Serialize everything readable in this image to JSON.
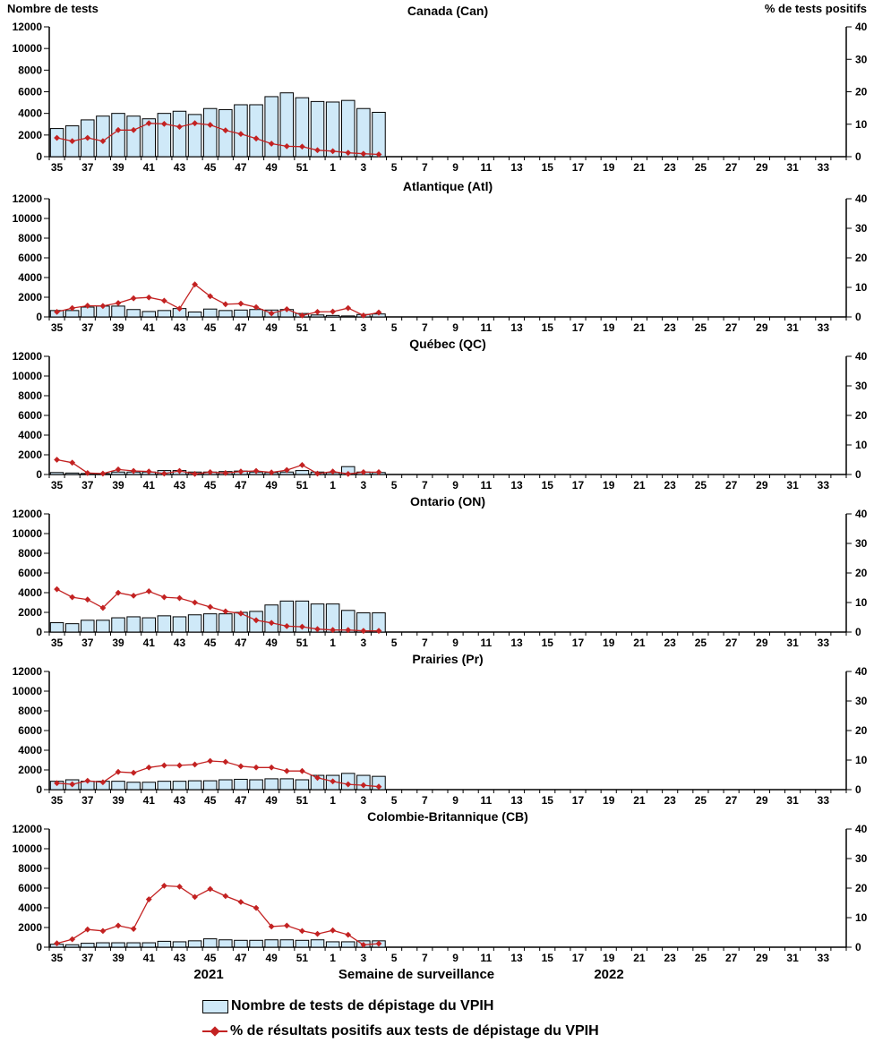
{
  "colors": {
    "bar_fill": "#CFE9F8",
    "bar_stroke": "#000000",
    "line": "#C32222",
    "axis": "#000000",
    "text": "#000000"
  },
  "axes": {
    "left_title": "Nombre de tests",
    "right_title": "% de tests positifs",
    "left_ticks": [
      "12000",
      "10000",
      "8000",
      "6000",
      "4000",
      "2000",
      "0"
    ],
    "right_ticks": [
      "40",
      "30",
      "20",
      "10",
      "0"
    ],
    "left_max": 12000,
    "right_max": 40,
    "weeks": [
      35,
      36,
      37,
      38,
      39,
      40,
      41,
      42,
      43,
      44,
      45,
      46,
      47,
      48,
      49,
      50,
      51,
      52,
      1,
      2,
      3,
      4,
      5,
      6,
      7,
      8,
      9,
      10,
      11,
      12,
      13,
      14,
      15,
      16,
      17,
      18,
      19,
      20,
      21,
      22,
      23,
      24,
      25,
      26,
      27,
      28,
      29,
      30,
      31,
      32,
      33,
      34
    ],
    "x_tick_labels": [
      "35",
      "37",
      "39",
      "41",
      "43",
      "45",
      "47",
      "49",
      "51",
      "1",
      "3",
      "5",
      "7",
      "9",
      "11",
      "13",
      "15",
      "17",
      "19",
      "21",
      "23",
      "25",
      "27",
      "29",
      "31",
      "33"
    ]
  },
  "footer": {
    "year_left": "2021",
    "axis_title": "Semaine de surveillance",
    "year_right": "2022"
  },
  "legend": {
    "bar_label": "Nombre de tests de dépistage du VPIH",
    "line_label": "% de résultats positifs aux tests de dépistage du VPIH"
  },
  "chart_data": [
    {
      "type": "bar",
      "id": "canada",
      "title": "Canada (Can)",
      "categories": [
        "35",
        "36",
        "37",
        "38",
        "39",
        "40",
        "41",
        "42",
        "43",
        "44",
        "45",
        "46",
        "47",
        "48",
        "49",
        "50",
        "51",
        "52",
        "1",
        "2",
        "3",
        "4"
      ],
      "ylim_left": [
        0,
        12000
      ],
      "ylim_right": [
        0,
        40
      ],
      "series": [
        {
          "name": "Nombre de tests de dépistage du VPIH",
          "axis": "left",
          "values": [
            2600,
            2850,
            3400,
            3750,
            4000,
            3750,
            3500,
            4000,
            4200,
            3900,
            4450,
            4350,
            4800,
            4800,
            5550,
            5900,
            5450,
            5100,
            5050,
            5200,
            4450,
            4100
          ]
        },
        {
          "name": "% de résultats positifs aux tests de dépistage du VPIH",
          "axis": "right",
          "values": [
            5.8,
            4.8,
            5.8,
            4.8,
            8.2,
            8.2,
            10.3,
            10.1,
            9.2,
            10.3,
            9.8,
            8.1,
            7.0,
            5.6,
            4.0,
            3.2,
            3.1,
            2.0,
            1.7,
            1.2,
            0.9,
            0.7
          ]
        }
      ]
    },
    {
      "type": "bar",
      "id": "atlantique",
      "title": "Atlantique (Atl)",
      "categories": [
        "35",
        "36",
        "37",
        "38",
        "39",
        "40",
        "41",
        "42",
        "43",
        "44",
        "45",
        "46",
        "47",
        "48",
        "49",
        "50",
        "51",
        "52",
        "1",
        "2",
        "3",
        "4"
      ],
      "ylim_left": [
        0,
        12000
      ],
      "ylim_right": [
        0,
        40
      ],
      "series": [
        {
          "name": "Nombre de tests de dépistage du VPIH",
          "axis": "left",
          "values": [
            650,
            650,
            1000,
            1100,
            1100,
            750,
            550,
            650,
            850,
            500,
            800,
            650,
            700,
            750,
            700,
            750,
            350,
            200,
            150,
            100,
            250,
            300
          ]
        },
        {
          "name": "% de résultats positifs aux tests de dépistage du VPIH",
          "axis": "right",
          "values": [
            1.7,
            3.0,
            3.8,
            3.7,
            4.7,
            6.3,
            6.6,
            5.5,
            2.8,
            11.0,
            7.0,
            4.3,
            4.5,
            3.3,
            1.2,
            2.6,
            0.5,
            1.7,
            1.8,
            3.0,
            0.5,
            1.5
          ]
        }
      ]
    },
    {
      "type": "bar",
      "id": "quebec",
      "title": "Québec (QC)",
      "categories": [
        "35",
        "36",
        "37",
        "38",
        "39",
        "40",
        "41",
        "42",
        "43",
        "44",
        "45",
        "46",
        "47",
        "48",
        "49",
        "50",
        "51",
        "52",
        "1",
        "2",
        "3",
        "4"
      ],
      "ylim_left": [
        0,
        12000
      ],
      "ylim_right": [
        0,
        40
      ],
      "series": [
        {
          "name": "Nombre de tests de dépistage du VPIH",
          "axis": "left",
          "values": [
            200,
            150,
            100,
            100,
            250,
            250,
            250,
            400,
            400,
            250,
            250,
            300,
            350,
            250,
            200,
            250,
            400,
            250,
            200,
            800,
            250,
            200
          ]
        },
        {
          "name": "% de résultats positifs aux tests de dépistage du VPIH",
          "axis": "right",
          "values": [
            5.0,
            4.0,
            0.5,
            0.3,
            1.7,
            1.2,
            1.0,
            0.3,
            1.2,
            0.2,
            0.8,
            0.5,
            1.0,
            1.2,
            0.7,
            1.5,
            3.2,
            0.3,
            1.0,
            0.2,
            0.8,
            0.8
          ]
        }
      ]
    },
    {
      "type": "bar",
      "id": "ontario",
      "title": "Ontario (ON)",
      "categories": [
        "35",
        "36",
        "37",
        "38",
        "39",
        "40",
        "41",
        "42",
        "43",
        "44",
        "45",
        "46",
        "47",
        "48",
        "49",
        "50",
        "51",
        "52",
        "1",
        "2",
        "3",
        "4"
      ],
      "ylim_left": [
        0,
        12000
      ],
      "ylim_right": [
        0,
        40
      ],
      "series": [
        {
          "name": "Nombre de tests de dépistage du VPIH",
          "axis": "left",
          "values": [
            950,
            850,
            1200,
            1200,
            1450,
            1550,
            1450,
            1650,
            1550,
            1750,
            1850,
            1850,
            2000,
            2100,
            2750,
            3150,
            3150,
            2850,
            2850,
            2200,
            1950,
            1950
          ]
        },
        {
          "name": "% de résultats positifs aux tests de dépistage du VPIH",
          "axis": "right",
          "values": [
            14.5,
            11.8,
            11.0,
            8.2,
            13.3,
            12.3,
            13.8,
            11.8,
            11.5,
            10.0,
            8.5,
            7.0,
            6.3,
            4.0,
            3.1,
            2.0,
            1.8,
            1.0,
            0.7,
            0.7,
            0.4,
            0.4
          ]
        }
      ]
    },
    {
      "type": "bar",
      "id": "prairies",
      "title": "Prairies (Pr)",
      "categories": [
        "35",
        "36",
        "37",
        "38",
        "39",
        "40",
        "41",
        "42",
        "43",
        "44",
        "45",
        "46",
        "47",
        "48",
        "49",
        "50",
        "51",
        "52",
        "1",
        "2",
        "3",
        "4"
      ],
      "ylim_left": [
        0,
        12000
      ],
      "ylim_right": [
        0,
        40
      ],
      "series": [
        {
          "name": "Nombre de tests de dépistage du VPIH",
          "axis": "left",
          "values": [
            850,
            1000,
            850,
            850,
            850,
            750,
            750,
            850,
            850,
            900,
            900,
            1000,
            1050,
            1000,
            1100,
            1100,
            1000,
            1450,
            1450,
            1650,
            1450,
            1350
          ]
        },
        {
          "name": "% de résultats positifs aux tests de dépistage du VPIH",
          "axis": "right",
          "values": [
            2.2,
            1.8,
            3.0,
            2.5,
            6.0,
            5.7,
            7.5,
            8.2,
            8.2,
            8.5,
            9.7,
            9.4,
            7.9,
            7.5,
            7.5,
            6.3,
            6.3,
            4.0,
            2.8,
            1.8,
            1.5,
            1.0
          ]
        }
      ]
    },
    {
      "type": "bar",
      "id": "colombie-britannique",
      "title": "Colombie-Britannique (CB)",
      "categories": [
        "35",
        "36",
        "37",
        "38",
        "39",
        "40",
        "41",
        "42",
        "43",
        "44",
        "45",
        "46",
        "47",
        "48",
        "49",
        "50",
        "51",
        "52",
        "1",
        "2",
        "3",
        "4"
      ],
      "ylim_left": [
        0,
        12000
      ],
      "ylim_right": [
        0,
        40
      ],
      "series": [
        {
          "name": "Nombre de tests de dépistage du VPIH",
          "axis": "left",
          "values": [
            300,
            250,
            400,
            450,
            450,
            450,
            450,
            600,
            550,
            650,
            850,
            750,
            700,
            700,
            750,
            750,
            700,
            750,
            550,
            550,
            650,
            650
          ]
        },
        {
          "name": "% de résultats positifs aux tests de dépistage du VPIH",
          "axis": "right",
          "values": [
            1.3,
            2.7,
            6.0,
            5.5,
            7.3,
            6.2,
            16.2,
            20.8,
            20.5,
            17.0,
            19.7,
            17.3,
            15.3,
            13.3,
            7.0,
            7.3,
            5.5,
            4.5,
            5.7,
            4.2,
            0.8,
            1.2
          ]
        }
      ]
    }
  ]
}
